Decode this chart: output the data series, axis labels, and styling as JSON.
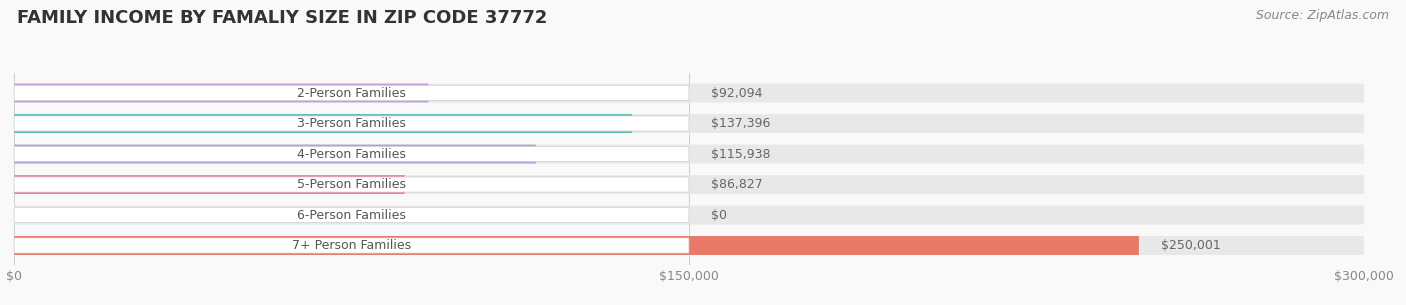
{
  "title": "FAMILY INCOME BY FAMALIY SIZE IN ZIP CODE 37772",
  "source": "Source: ZipAtlas.com",
  "categories": [
    "2-Person Families",
    "3-Person Families",
    "4-Person Families",
    "5-Person Families",
    "6-Person Families",
    "7+ Person Families"
  ],
  "values": [
    92094,
    137396,
    115938,
    86827,
    0,
    250001
  ],
  "bar_colors": [
    "#c9a0dc",
    "#5bbcb8",
    "#a8a8d8",
    "#f08098",
    "#f5c98a",
    "#e87868"
  ],
  "value_labels": [
    "$92,094",
    "$137,396",
    "$115,938",
    "$86,827",
    "$0",
    "$250,001"
  ],
  "xlim": [
    0,
    300000
  ],
  "xticks": [
    0,
    150000,
    300000
  ],
  "xticklabels": [
    "$0",
    "$150,000",
    "$300,000"
  ],
  "title_fontsize": 13,
  "source_fontsize": 9,
  "label_fontsize": 9,
  "value_fontsize": 9,
  "background_color": "#f9f9f9",
  "bg_bar_color": "#e8e8e8",
  "pill_color": "white",
  "pill_edge_color": "#cccccc",
  "label_color": "#555555",
  "value_color": "#666666",
  "grid_color": "#cccccc",
  "title_color": "#333333",
  "source_color": "#888888",
  "tick_color": "#888888"
}
